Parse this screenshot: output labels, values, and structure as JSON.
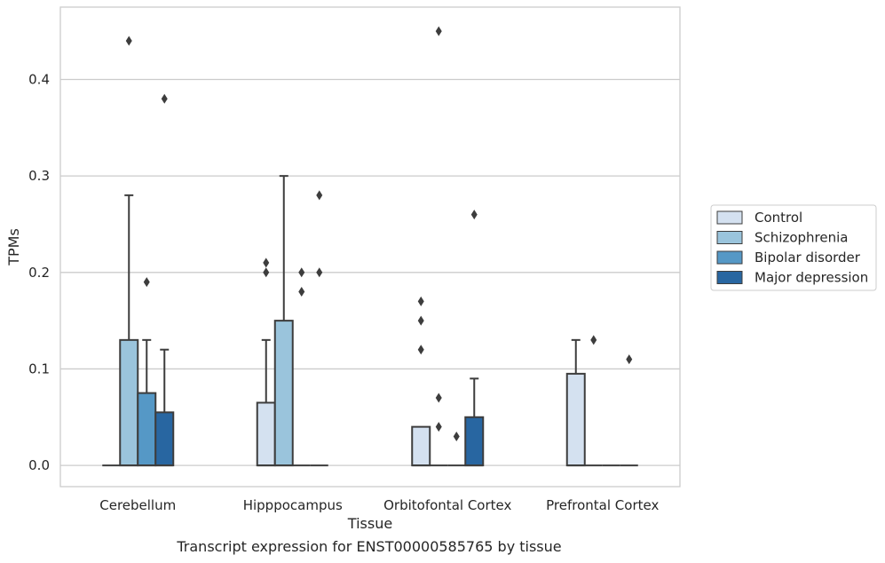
{
  "caption": "Transcript expression for ENST00000585765 by tissue",
  "chart_data": {
    "type": "box",
    "xlabel": "Tissue",
    "ylabel": "TPMs",
    "ylim": [
      -0.022,
      0.475
    ],
    "yticks": [
      0.0,
      0.1,
      0.2,
      0.3,
      0.4
    ],
    "ytick_labels": [
      "0.0",
      "0.1",
      "0.2",
      "0.3",
      "0.4"
    ],
    "grid": "horizontal",
    "legend_position": "right",
    "categories": [
      "Cerebellum",
      "Hipppocampus",
      "Orbitofontal Cortex",
      "Prefrontal Cortex"
    ],
    "series": [
      {
        "name": "Control",
        "color": "#d4e1f0",
        "boxes": [
          {
            "q1": 0,
            "median": 0,
            "q3": 0,
            "whisker_low": 0,
            "whisker_high": 0,
            "outliers": []
          },
          {
            "q1": 0,
            "median": 0,
            "q3": 0.065,
            "whisker_low": 0,
            "whisker_high": 0.13,
            "outliers": [
              0.2,
              0.21
            ]
          },
          {
            "q1": 0,
            "median": 0,
            "q3": 0.04,
            "whisker_low": 0,
            "whisker_high": 0.04,
            "outliers": [
              0.12,
              0.15,
              0.17
            ]
          },
          {
            "q1": 0,
            "median": 0,
            "q3": 0.095,
            "whisker_low": 0,
            "whisker_high": 0.13,
            "outliers": []
          }
        ]
      },
      {
        "name": "Schizophrenia",
        "color": "#9ac4dc",
        "boxes": [
          {
            "q1": 0,
            "median": 0,
            "q3": 0.13,
            "whisker_low": 0,
            "whisker_high": 0.28,
            "outliers": [
              0.44
            ]
          },
          {
            "q1": 0,
            "median": 0,
            "q3": 0.15,
            "whisker_low": 0,
            "whisker_high": 0.3,
            "outliers": []
          },
          {
            "q1": 0,
            "median": 0,
            "q3": 0,
            "whisker_low": 0,
            "whisker_high": 0,
            "outliers": [
              0.04,
              0.07,
              0.45
            ]
          },
          {
            "q1": 0,
            "median": 0,
            "q3": 0,
            "whisker_low": 0,
            "whisker_high": 0,
            "outliers": [
              0.13
            ]
          }
        ]
      },
      {
        "name": "Bipolar disorder",
        "color": "#5598c6",
        "boxes": [
          {
            "q1": 0,
            "median": 0,
            "q3": 0.075,
            "whisker_low": 0,
            "whisker_high": 0.13,
            "outliers": [
              0.19
            ]
          },
          {
            "q1": 0,
            "median": 0,
            "q3": 0,
            "whisker_low": 0,
            "whisker_high": 0,
            "outliers": [
              0.18,
              0.2
            ]
          },
          {
            "q1": 0,
            "median": 0,
            "q3": 0,
            "whisker_low": 0,
            "whisker_high": 0,
            "outliers": [
              0.03
            ]
          },
          {
            "q1": 0,
            "median": 0,
            "q3": 0,
            "whisker_low": 0,
            "whisker_high": 0,
            "outliers": []
          }
        ]
      },
      {
        "name": "Major depression",
        "color": "#2866a1",
        "boxes": [
          {
            "q1": 0,
            "median": 0,
            "q3": 0.055,
            "whisker_low": 0,
            "whisker_high": 0.12,
            "outliers": [
              0.38
            ]
          },
          {
            "q1": 0,
            "median": 0,
            "q3": 0,
            "whisker_low": 0,
            "whisker_high": 0,
            "outliers": [
              0.2,
              0.28
            ]
          },
          {
            "q1": 0,
            "median": 0,
            "q3": 0.05,
            "whisker_low": 0,
            "whisker_high": 0.09,
            "outliers": [
              0.26
            ]
          },
          {
            "q1": 0,
            "median": 0,
            "q3": 0,
            "whisker_low": 0,
            "whisker_high": 0,
            "outliers": [
              0.11
            ]
          }
        ]
      }
    ]
  }
}
